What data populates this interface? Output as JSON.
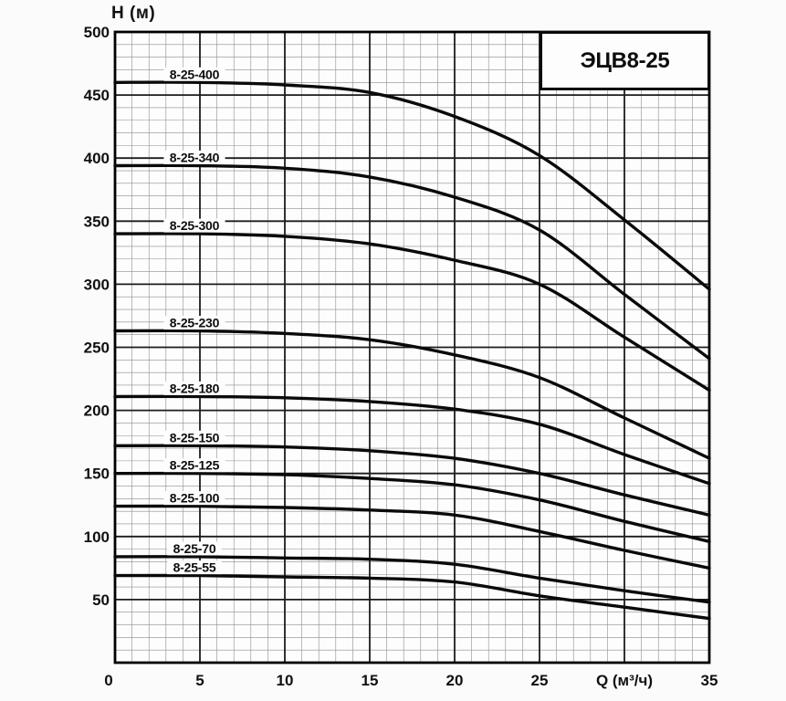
{
  "chart_data": {
    "type": "line",
    "title": "ЭЦВ8-25",
    "xlabel": "Q (м³/ч)",
    "ylabel": "H (м)",
    "xlim": [
      0,
      35
    ],
    "ylim": [
      0,
      500
    ],
    "grid": {
      "visible": true,
      "x_minor_step": 1,
      "x_major_step": 5,
      "y_minor_step": 10,
      "y_major_step": 50
    },
    "x_ticks": [
      {
        "value": 0,
        "label": "0"
      },
      {
        "value": 5,
        "label": "5"
      },
      {
        "value": 10,
        "label": "10"
      },
      {
        "value": 15,
        "label": "15"
      },
      {
        "value": 20,
        "label": "20"
      },
      {
        "value": 25,
        "label": "25"
      },
      {
        "value": 30,
        "label": "Q (м³/ч)"
      },
      {
        "value": 35,
        "label": "35"
      }
    ],
    "y_ticks": [
      {
        "value": 500,
        "label": "500"
      },
      {
        "value": 450,
        "label": "450"
      },
      {
        "value": 400,
        "label": "400"
      },
      {
        "value": 350,
        "label": "350"
      },
      {
        "value": 300,
        "label": "300"
      },
      {
        "value": 250,
        "label": "250"
      },
      {
        "value": 200,
        "label": "200"
      },
      {
        "value": 150,
        "label": "150"
      },
      {
        "value": 100,
        "label": "100"
      },
      {
        "value": 50,
        "label": "50"
      }
    ],
    "x": [
      0,
      5,
      10,
      15,
      20,
      25,
      30,
      35
    ],
    "series": [
      {
        "name": "8-25-400",
        "values": [
          460,
          460,
          458,
          452,
          433,
          402,
          351,
          296
        ]
      },
      {
        "name": "8-25-340",
        "values": [
          394,
          394,
          392,
          385,
          369,
          343,
          292,
          241
        ]
      },
      {
        "name": "8-25-300",
        "values": [
          340,
          340,
          338,
          332,
          319,
          300,
          258,
          216
        ]
      },
      {
        "name": "8-25-230",
        "values": [
          263,
          263,
          261,
          256,
          244,
          226,
          194,
          162
        ]
      },
      {
        "name": "8-25-180",
        "values": [
          211,
          211,
          210,
          207,
          201,
          189,
          165,
          142
        ]
      },
      {
        "name": "8-25-150",
        "values": [
          172,
          172,
          171,
          168,
          162,
          150,
          133,
          117
        ]
      },
      {
        "name": "8-25-125",
        "values": [
          150,
          150,
          149,
          146,
          141,
          129,
          112,
          96
        ]
      },
      {
        "name": "8-25-100",
        "values": [
          124,
          124,
          123,
          121,
          117,
          104,
          89,
          75
        ]
      },
      {
        "name": "8-25-70",
        "values": [
          84,
          84,
          83,
          82,
          78,
          67,
          57,
          48
        ]
      },
      {
        "name": "8-25-55",
        "values": [
          69,
          69,
          68,
          67,
          64,
          53,
          44,
          35
        ]
      }
    ],
    "legend": "labels drawn above each curve near Q=3..6"
  },
  "colors": {
    "background": "#fbfbfb",
    "plot_fill": "#fdfdfd",
    "curve": "#0a0a0a",
    "grid_major": "#1c1c1c",
    "grid_minor": "#8d8d8d",
    "border": "#000000",
    "label_halo": "#fdfdfd",
    "text": "#111111"
  }
}
